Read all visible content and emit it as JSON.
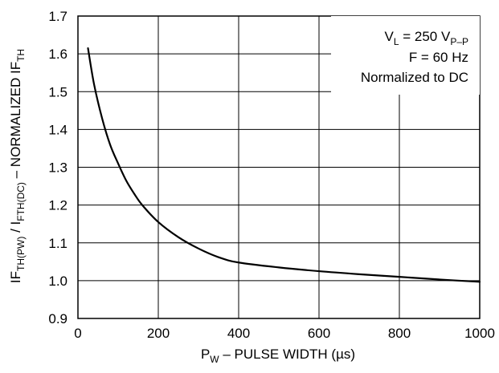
{
  "chart_data": {
    "type": "line",
    "title": "",
    "xlabel": {
      "main": "P",
      "sub": "W",
      "rest": " – PULSE WIDTH (µs)"
    },
    "ylabel": {
      "p1": "IF",
      "s1": "TH(PW)",
      "p2": " / I",
      "s2": "FTH(DC)",
      "p3": " – NORMALIZED IF",
      "s3": "TH"
    },
    "xlim": [
      0,
      1000
    ],
    "ylim": [
      0.9,
      1.7
    ],
    "xticks": [
      "0",
      "200",
      "400",
      "600",
      "800",
      "1000"
    ],
    "yticks": [
      "0.9",
      "1.0",
      "1.1",
      "1.2",
      "1.3",
      "1.4",
      "1.5",
      "1.6",
      "1.7"
    ],
    "grid": true,
    "annotations": {
      "line1": {
        "main": "V",
        "sub1": "L",
        "mid": " = 250 V",
        "sub2": "P–P"
      },
      "line2": "F = 60 Hz",
      "line3": "Normalized to DC"
    },
    "series": [
      {
        "x": [
          25,
          40,
          60,
          80,
          100,
          120,
          140,
          160,
          200,
          250,
          300,
          350,
          400,
          500,
          600,
          700,
          800,
          900,
          1000
        ],
        "y": [
          1.615,
          1.52,
          1.43,
          1.36,
          1.31,
          1.265,
          1.23,
          1.2,
          1.155,
          1.115,
          1.085,
          1.062,
          1.048,
          1.035,
          1.025,
          1.017,
          1.01,
          1.003,
          0.997
        ]
      }
    ]
  }
}
